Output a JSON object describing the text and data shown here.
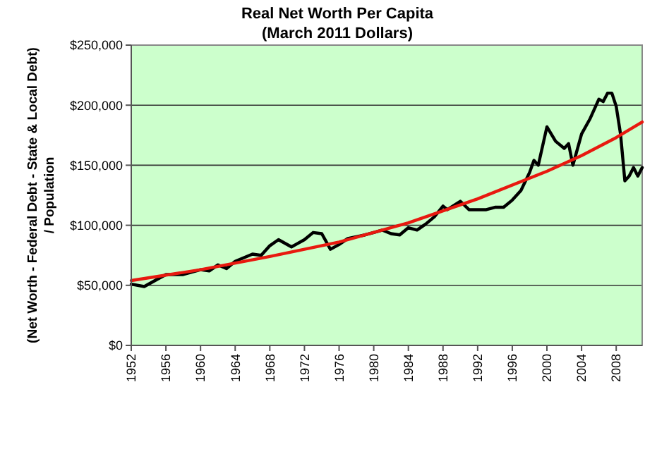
{
  "chart_data": {
    "type": "line",
    "title": "Real Net Worth Per Capita",
    "subtitle": "(March 2011 Dollars)",
    "ylabel": "(Net Worth - Federal Debt - State & Local Debt)\n/ Population",
    "xlim": [
      1952,
      2011
    ],
    "xticks": [
      1952,
      1956,
      1960,
      1964,
      1968,
      1972,
      1976,
      1980,
      1984,
      1988,
      1992,
      1996,
      2000,
      2004,
      2008
    ],
    "ylim": [
      0,
      250000
    ],
    "yticks": [
      {
        "value": 0,
        "label": "$0"
      },
      {
        "value": 50000,
        "label": "$50,000"
      },
      {
        "value": 100000,
        "label": "$100,000"
      },
      {
        "value": 150000,
        "label": "$150,000"
      },
      {
        "value": 200000,
        "label": "$200,000"
      },
      {
        "value": 250000,
        "label": "$250,000"
      }
    ],
    "grid": "y",
    "marker": "none",
    "line_style": "solid",
    "series": [
      {
        "color": "#000000",
        "x": [
          1952,
          1953.5,
          1955,
          1956,
          1958,
          1960,
          1961,
          1962,
          1963,
          1964,
          1966,
          1967,
          1968,
          1969,
          1970.5,
          1971,
          1972,
          1973,
          1974,
          1975,
          1976,
          1977,
          1979,
          1980,
          1981,
          1982,
          1983,
          1984,
          1985,
          1986,
          1987,
          1988,
          1988.5,
          1990,
          1991,
          1993,
          1994,
          1995,
          1996,
          1997,
          1998,
          1998.5,
          1999,
          2000,
          2001,
          2002,
          2002.5,
          2003,
          2004,
          2005,
          2006,
          2006.5,
          2007,
          2007.5,
          2008,
          2008.5,
          2009,
          2009.5,
          2010,
          2010.5,
          2011
        ],
        "values": [
          51000,
          49000,
          55000,
          59000,
          59000,
          63000,
          62000,
          67000,
          64000,
          70000,
          76000,
          75000,
          83000,
          88000,
          82000,
          84000,
          88000,
          94000,
          93000,
          80000,
          84000,
          89000,
          92000,
          94000,
          96000,
          93000,
          92000,
          98000,
          96000,
          101000,
          107000,
          116000,
          113000,
          120000,
          113000,
          113000,
          115000,
          115000,
          121000,
          129000,
          144000,
          154000,
          150000,
          182000,
          170000,
          164000,
          168000,
          150000,
          176000,
          189000,
          205000,
          203000,
          210000,
          210000,
          199000,
          176000,
          137000,
          141000,
          148000,
          141000,
          148000
        ]
      },
      {
        "color": "#e8190f",
        "x": [
          1952,
          1960,
          1968,
          1976,
          1984,
          1992,
          2000,
          2004,
          2008,
          2011
        ],
        "values": [
          54000,
          63000,
          74000,
          86000,
          102000,
          122000,
          145000,
          158000,
          173000,
          186000
        ]
      }
    ]
  }
}
